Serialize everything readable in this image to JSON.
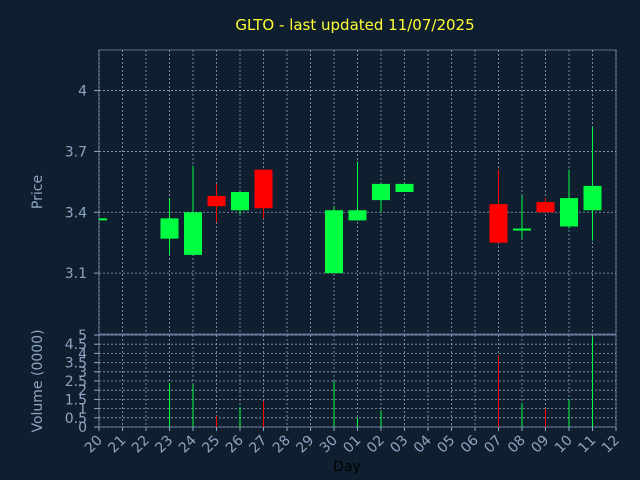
{
  "chart_data": [
    {
      "type": "candlestick",
      "title": "GLTO - last updated 11/07/2025",
      "ylabel": "Price",
      "ylim": [
        2.8,
        4.2
      ],
      "yticks": [
        3.1,
        3.4,
        3.7,
        4
      ],
      "ytick_labels": [
        "3.1",
        "3.4",
        "3.7",
        "4"
      ],
      "grid": true,
      "colors": {
        "up": "#00ff40",
        "down": "#ff0000"
      },
      "candles": [
        {
          "day": "20",
          "open": 3.37,
          "close": 3.37,
          "high": 3.37,
          "low": 3.37
        },
        {
          "day": "23",
          "open": 3.27,
          "close": 3.37,
          "high": 3.47,
          "low": 3.19
        },
        {
          "day": "24",
          "open": 3.19,
          "close": 3.4,
          "high": 3.63,
          "low": 3.19
        },
        {
          "day": "25",
          "open": 3.48,
          "close": 3.43,
          "high": 3.54,
          "low": 3.35
        },
        {
          "day": "26",
          "open": 3.41,
          "close": 3.5,
          "high": 3.5,
          "low": 3.39
        },
        {
          "day": "27",
          "open": 3.61,
          "close": 3.42,
          "high": 3.61,
          "low": 3.37
        },
        {
          "day": "30",
          "open": 3.1,
          "close": 3.41,
          "high": 3.43,
          "low": 3.1
        },
        {
          "day": "01",
          "open": 3.36,
          "close": 3.41,
          "high": 3.65,
          "low": 3.36
        },
        {
          "day": "02",
          "open": 3.46,
          "close": 3.54,
          "high": 3.54,
          "low": 3.4
        },
        {
          "day": "03",
          "open": 3.5,
          "close": 3.54,
          "high": 3.54,
          "low": 3.5
        },
        {
          "day": "07",
          "open": 3.44,
          "close": 3.25,
          "high": 3.61,
          "low": 3.25
        },
        {
          "day": "08",
          "open": 3.31,
          "close": 3.32,
          "high": 3.48,
          "low": 3.27
        },
        {
          "day": "09",
          "open": 3.45,
          "close": 3.4,
          "high": 3.47,
          "low": 3.4
        },
        {
          "day": "10",
          "open": 3.33,
          "close": 3.47,
          "high": 3.61,
          "low": 3.32
        },
        {
          "day": "11",
          "open": 3.41,
          "close": 3.53,
          "high": 3.82,
          "low": 3.26
        }
      ]
    },
    {
      "type": "bar",
      "ylabel": "Volume (0000)",
      "xlabel": "Day",
      "ylim": [
        0,
        5
      ],
      "yticks": [
        0,
        0.5,
        1,
        1.5,
        2,
        2.5,
        3,
        3.5,
        4,
        4.5,
        5
      ],
      "ytick_labels": [
        "0",
        "0.5",
        "1",
        "1.5",
        "2",
        "2.5",
        "3",
        "3.5",
        "4",
        "4.5",
        "5"
      ],
      "categories": [
        "20",
        "21",
        "22",
        "23",
        "24",
        "25",
        "26",
        "27",
        "28",
        "29",
        "30",
        "01",
        "02",
        "03",
        "04",
        "05",
        "06",
        "07",
        "08",
        "09",
        "10",
        "11",
        "12"
      ],
      "volumes": [
        {
          "day": "23",
          "value": 2.4,
          "direction": "up"
        },
        {
          "day": "24",
          "value": 2.3,
          "direction": "up"
        },
        {
          "day": "25",
          "value": 0.6,
          "direction": "down"
        },
        {
          "day": "26",
          "value": 1.1,
          "direction": "up"
        },
        {
          "day": "27",
          "value": 1.4,
          "direction": "down"
        },
        {
          "day": "30",
          "value": 2.5,
          "direction": "up"
        },
        {
          "day": "01",
          "value": 0.5,
          "direction": "up"
        },
        {
          "day": "02",
          "value": 0.9,
          "direction": "up"
        },
        {
          "day": "07",
          "value": 3.9,
          "direction": "down"
        },
        {
          "day": "08",
          "value": 1.3,
          "direction": "up"
        },
        {
          "day": "09",
          "value": 1.0,
          "direction": "down"
        },
        {
          "day": "10",
          "value": 1.5,
          "direction": "up"
        },
        {
          "day": "11",
          "value": 4.9,
          "direction": "up"
        }
      ]
    }
  ]
}
